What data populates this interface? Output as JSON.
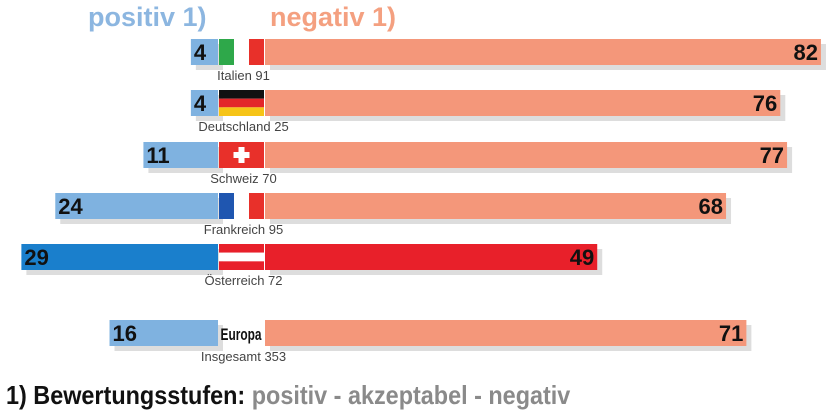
{
  "chart_data": {
    "type": "bar",
    "orientation": "horizontal-diverging",
    "series": [
      {
        "name": "positiv 1)",
        "values": [
          4,
          4,
          11,
          24,
          29,
          16
        ],
        "color": "#7fb2e0"
      },
      {
        "name": "negativ 1)",
        "values": [
          82,
          76,
          77,
          68,
          49,
          71
        ],
        "color": "#f4977a"
      }
    ],
    "categories": [
      "Italien 91",
      "Deutschland 25",
      "Schweiz 70",
      "Frankreich 95",
      "Österreich 72",
      "Insgesamt 353"
    ],
    "flags": [
      "italy",
      "germany",
      "switzerland",
      "france",
      "austria",
      "europa"
    ],
    "europa_label": "Europa",
    "highlight": {
      "index": 4,
      "positive_color": "#1a7fcc",
      "negative_color": "#e8202a"
    },
    "footnote": {
      "prefix": "1) Bewertungsstufen:",
      "text": "positiv - akzeptabel - negativ"
    }
  }
}
